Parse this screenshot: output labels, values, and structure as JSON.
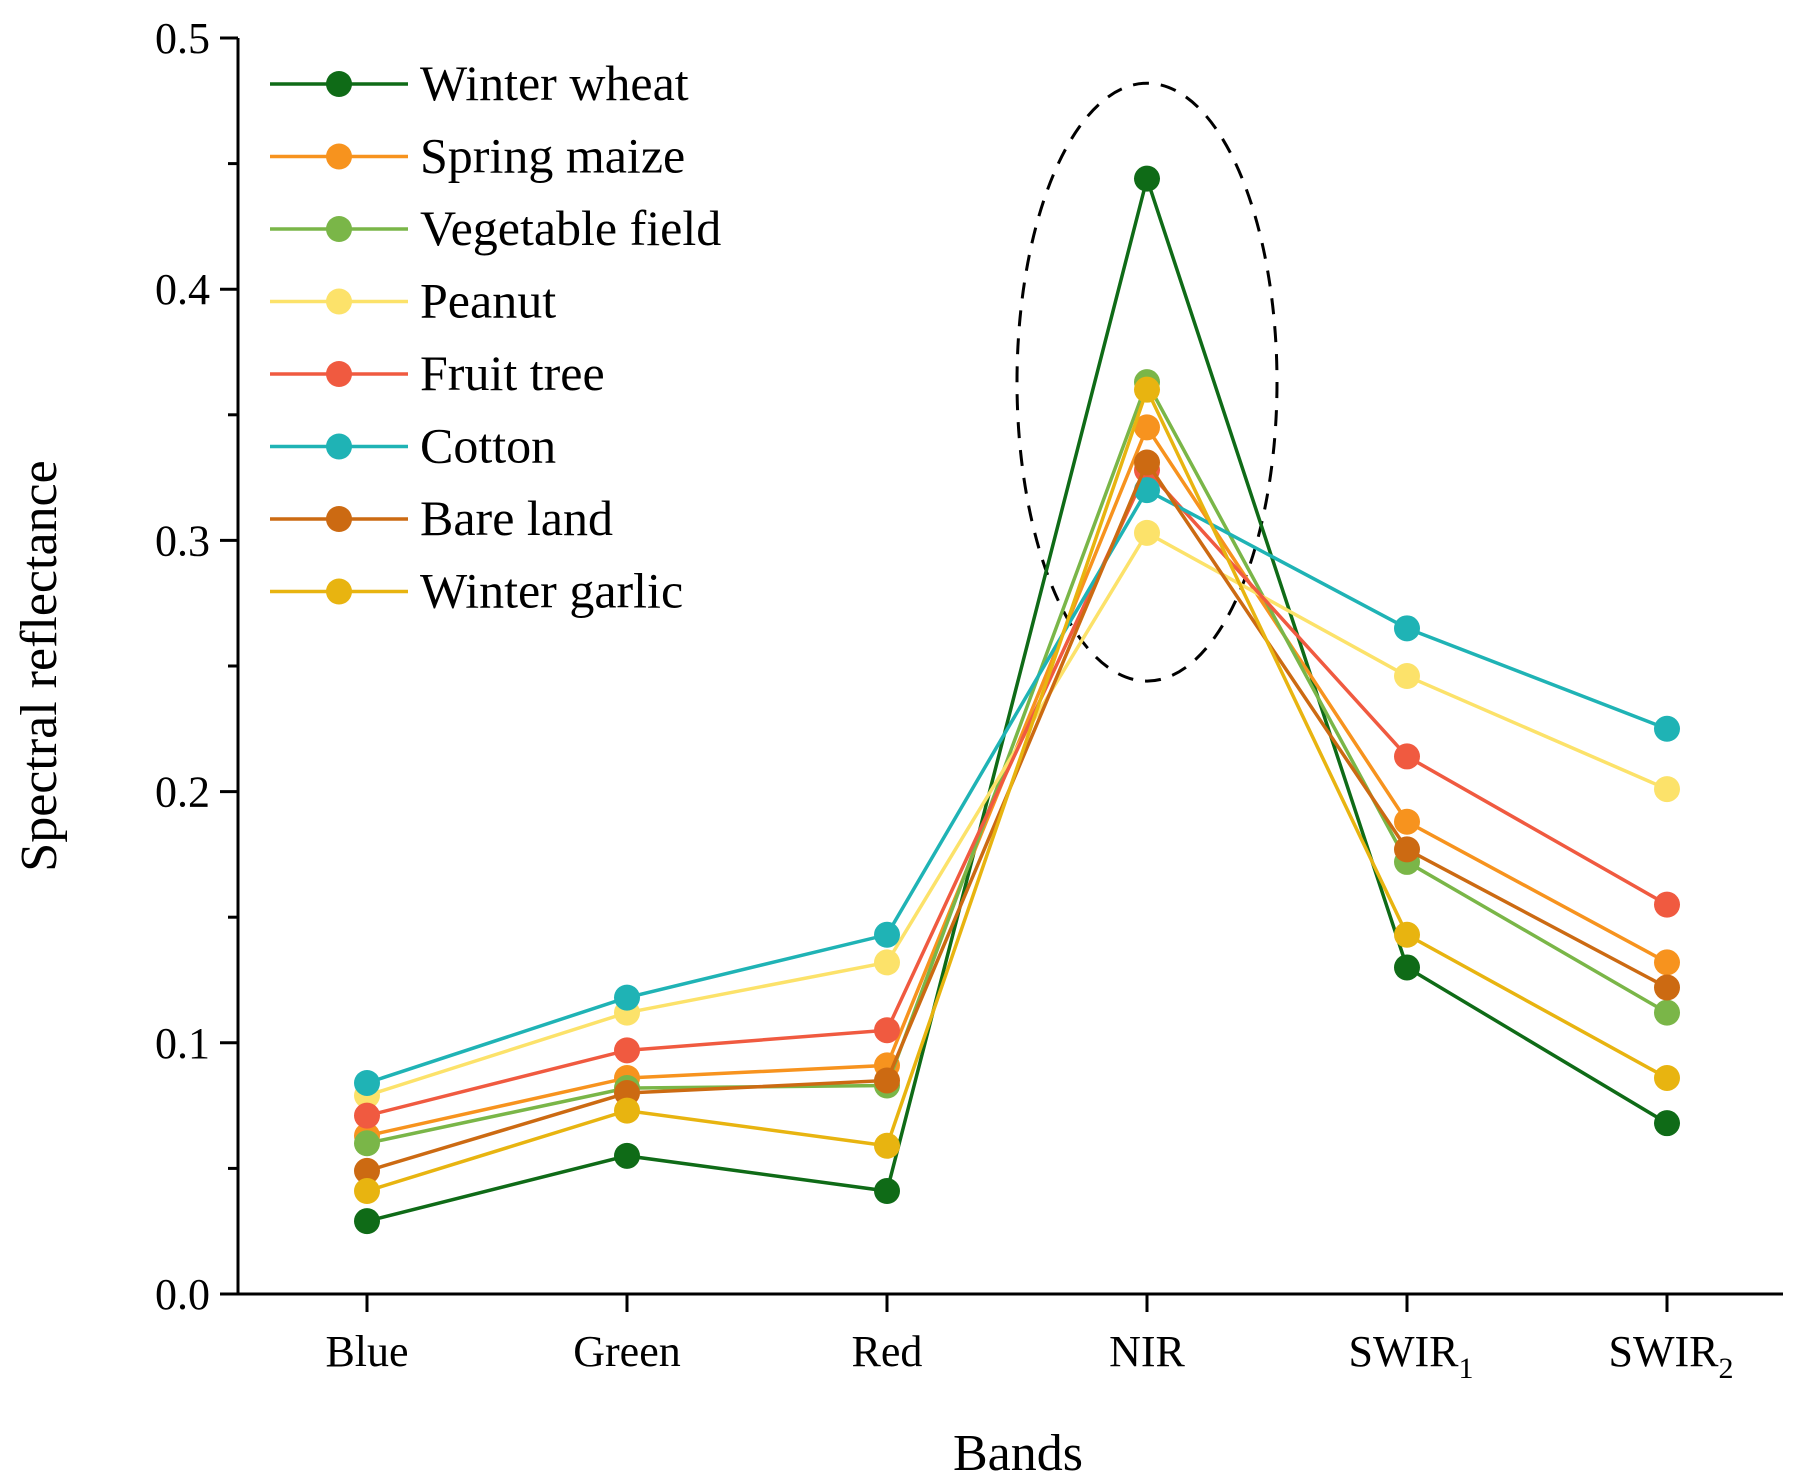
{
  "chart_data": {
    "type": "line",
    "title": "",
    "xlabel": "Bands",
    "ylabel": "Spectral reflectance",
    "categories": [
      {
        "base": "Blue",
        "sub": ""
      },
      {
        "base": "Green",
        "sub": ""
      },
      {
        "base": "Red",
        "sub": ""
      },
      {
        "base": "NIR",
        "sub": ""
      },
      {
        "base": "SWIR",
        "sub": "1"
      },
      {
        "base": "SWIR",
        "sub": "2"
      }
    ],
    "ylim": [
      0,
      0.5
    ],
    "yticks": [
      0.0,
      0.1,
      0.2,
      0.3,
      0.4,
      0.5
    ],
    "ytick_labels": [
      "0.0",
      "0.1",
      "0.2",
      "0.3",
      "0.4",
      "0.5"
    ],
    "legend_position": "top-left",
    "highlight": {
      "shape": "dashed-ellipse",
      "category_index": 3,
      "y_range": [
        0.244,
        0.482
      ]
    },
    "series": [
      {
        "name": "Winter wheat",
        "color": "#0f6b17",
        "values": [
          0.029,
          0.055,
          0.041,
          0.444,
          0.13,
          0.068
        ]
      },
      {
        "name": "Spring maize",
        "color": "#f7931e",
        "values": [
          0.063,
          0.086,
          0.091,
          0.345,
          0.188,
          0.132
        ]
      },
      {
        "name": "Vegetable field",
        "color": "#7ab648",
        "values": [
          0.06,
          0.082,
          0.083,
          0.363,
          0.172,
          0.112
        ]
      },
      {
        "name": "Peanut",
        "color": "#fce26a",
        "values": [
          0.079,
          0.112,
          0.132,
          0.303,
          0.246,
          0.201
        ]
      },
      {
        "name": "Fruit tree",
        "color": "#f05a40",
        "values": [
          0.071,
          0.097,
          0.105,
          0.328,
          0.214,
          0.155
        ]
      },
      {
        "name": "Cotton",
        "color": "#1fb3b5",
        "values": [
          0.084,
          0.118,
          0.143,
          0.32,
          0.265,
          0.225
        ]
      },
      {
        "name": "Bare land",
        "color": "#cc6a12",
        "values": [
          0.049,
          0.08,
          0.085,
          0.331,
          0.177,
          0.122
        ]
      },
      {
        "name": "Winter garlic",
        "color": "#e8b410",
        "values": [
          0.041,
          0.073,
          0.059,
          0.36,
          0.143,
          0.086
        ]
      }
    ]
  }
}
